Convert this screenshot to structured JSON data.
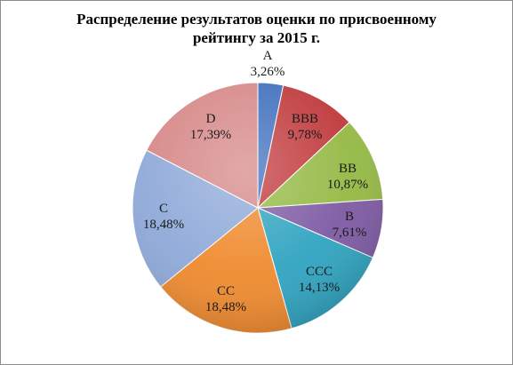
{
  "chart_data": {
    "type": "pie",
    "title_lines": [
      "Распределение результатов  оценки по присвоенному",
      "рейтингу за 2015 г."
    ],
    "slices": [
      {
        "label": "A",
        "value_label": "3,26%",
        "value": 3.26,
        "color": "#3f6fbd"
      },
      {
        "label": "BBB",
        "value_label": "9,78%",
        "value": 9.78,
        "color": "#c0393b"
      },
      {
        "label": "BB",
        "value_label": "10,87%",
        "value": 10.87,
        "color": "#94b944"
      },
      {
        "label": "B",
        "value_label": "7,61%",
        "value": 7.61,
        "color": "#7d5aa3"
      },
      {
        "label": "CCC",
        "value_label": "14,13%",
        "value": 14.13,
        "color": "#2fa3c0"
      },
      {
        "label": "CC",
        "value_label": "18,48%",
        "value": 18.48,
        "color": "#ef8a2e"
      },
      {
        "label": "C",
        "value_label": "18,48%",
        "value": 18.48,
        "color": "#8ea9d8"
      },
      {
        "label": "D",
        "value_label": "17,39%",
        "value": 17.39,
        "color": "#d68787"
      }
    ],
    "start_angle_deg": 0,
    "direction": "clockwise"
  }
}
